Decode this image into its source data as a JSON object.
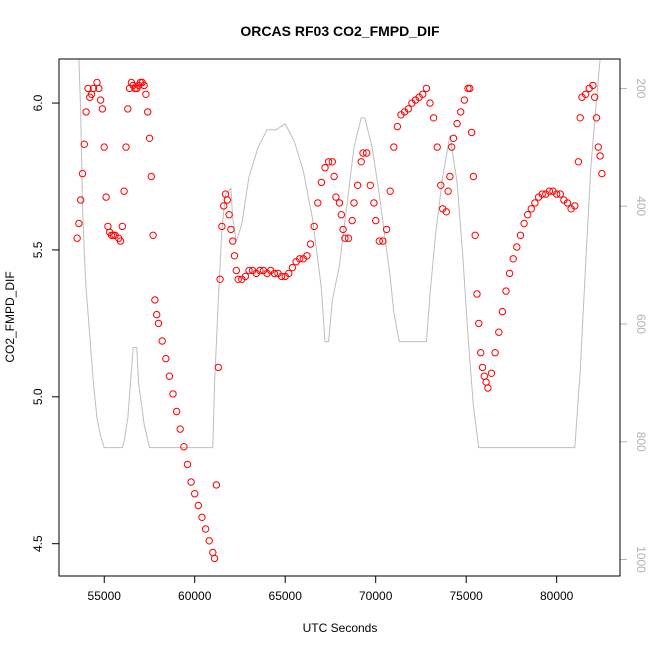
{
  "chart_data": {
    "type": "scatter",
    "title": "ORCAS RF03 CO2_FMPD_DIF",
    "xlabel": "UTC Seconds",
    "ylabel": "CO2_FMPD_DIF",
    "xlim": [
      52500,
      83500
    ],
    "ylim": [
      4.39,
      6.15
    ],
    "x_ticks": [
      55000,
      60000,
      65000,
      70000,
      75000,
      80000
    ],
    "y_ticks": [
      4.5,
      5.0,
      5.5,
      6.0
    ],
    "y2_ticks": [
      200,
      400,
      600,
      800,
      1000
    ],
    "y2lim": [
      1028,
      150
    ],
    "grid": false,
    "legend": "none",
    "colors": {
      "points": "#ff0000",
      "line": "#bebebe",
      "frame": "#000000",
      "right_axis": "#b3b3b3"
    },
    "series": [
      {
        "marker": "open-circle",
        "color": "#ff0000",
        "points": [
          [
            53500,
            5.54
          ],
          [
            53600,
            5.59
          ],
          [
            53700,
            5.67
          ],
          [
            53800,
            5.76
          ],
          [
            53900,
            5.86
          ],
          [
            54000,
            5.97
          ],
          [
            54100,
            6.05
          ],
          [
            54200,
            6.02
          ],
          [
            54300,
            6.03
          ],
          [
            54400,
            6.05
          ],
          [
            54600,
            6.07
          ],
          [
            54700,
            6.05
          ],
          [
            54800,
            6.01
          ],
          [
            54900,
            5.98
          ],
          [
            55000,
            5.85
          ],
          [
            55100,
            5.68
          ],
          [
            55200,
            5.58
          ],
          [
            55300,
            5.56
          ],
          [
            55400,
            5.55
          ],
          [
            55500,
            5.55
          ],
          [
            55600,
            5.55
          ],
          [
            55800,
            5.54
          ],
          [
            55900,
            5.53
          ],
          [
            56000,
            5.58
          ],
          [
            56100,
            5.7
          ],
          [
            56200,
            5.85
          ],
          [
            56300,
            5.98
          ],
          [
            56400,
            6.05
          ],
          [
            56500,
            6.07
          ],
          [
            56600,
            6.06
          ],
          [
            56700,
            6.05
          ],
          [
            56800,
            6.05
          ],
          [
            56900,
            6.06
          ],
          [
            57000,
            6.07
          ],
          [
            57100,
            6.07
          ],
          [
            57200,
            6.06
          ],
          [
            57300,
            6.03
          ],
          [
            57400,
            5.97
          ],
          [
            57500,
            5.88
          ],
          [
            57600,
            5.75
          ],
          [
            57700,
            5.55
          ],
          [
            57800,
            5.33
          ],
          [
            57900,
            5.28
          ],
          [
            58000,
            5.25
          ],
          [
            58200,
            5.19
          ],
          [
            58400,
            5.13
          ],
          [
            58600,
            5.07
          ],
          [
            58800,
            5.01
          ],
          [
            59000,
            4.95
          ],
          [
            59200,
            4.89
          ],
          [
            59400,
            4.83
          ],
          [
            59600,
            4.77
          ],
          [
            59800,
            4.71
          ],
          [
            60000,
            4.67
          ],
          [
            60200,
            4.63
          ],
          [
            60400,
            4.59
          ],
          [
            60600,
            4.55
          ],
          [
            60800,
            4.51
          ],
          [
            61000,
            4.47
          ],
          [
            61100,
            4.45
          ],
          [
            61200,
            4.7
          ],
          [
            61300,
            5.1
          ],
          [
            61400,
            5.4
          ],
          [
            61500,
            5.58
          ],
          [
            61600,
            5.65
          ],
          [
            61700,
            5.69
          ],
          [
            61800,
            5.67
          ],
          [
            61900,
            5.62
          ],
          [
            62000,
            5.57
          ],
          [
            62100,
            5.53
          ],
          [
            62200,
            5.48
          ],
          [
            62300,
            5.43
          ],
          [
            62400,
            5.4
          ],
          [
            62600,
            5.4
          ],
          [
            62800,
            5.41
          ],
          [
            63000,
            5.43
          ],
          [
            63200,
            5.43
          ],
          [
            63400,
            5.42
          ],
          [
            63600,
            5.43
          ],
          [
            63800,
            5.43
          ],
          [
            64000,
            5.42
          ],
          [
            64200,
            5.43
          ],
          [
            64400,
            5.42
          ],
          [
            64600,
            5.42
          ],
          [
            64800,
            5.41
          ],
          [
            65000,
            5.41
          ],
          [
            65200,
            5.42
          ],
          [
            65400,
            5.44
          ],
          [
            65600,
            5.46
          ],
          [
            65800,
            5.47
          ],
          [
            66000,
            5.47
          ],
          [
            66200,
            5.48
          ],
          [
            66400,
            5.52
          ],
          [
            66600,
            5.58
          ],
          [
            66800,
            5.66
          ],
          [
            67000,
            5.73
          ],
          [
            67200,
            5.78
          ],
          [
            67400,
            5.8
          ],
          [
            67600,
            5.8
          ],
          [
            67700,
            5.75
          ],
          [
            67800,
            5.68
          ],
          [
            68000,
            5.66
          ],
          [
            68100,
            5.62
          ],
          [
            68200,
            5.57
          ],
          [
            68300,
            5.54
          ],
          [
            68500,
            5.54
          ],
          [
            68700,
            5.6
          ],
          [
            68800,
            5.66
          ],
          [
            69000,
            5.72
          ],
          [
            69200,
            5.8
          ],
          [
            69300,
            5.83
          ],
          [
            69500,
            5.83
          ],
          [
            69700,
            5.72
          ],
          [
            69900,
            5.66
          ],
          [
            70000,
            5.6
          ],
          [
            70200,
            5.53
          ],
          [
            70400,
            5.53
          ],
          [
            70600,
            5.57
          ],
          [
            70800,
            5.7
          ],
          [
            71000,
            5.85
          ],
          [
            71200,
            5.92
          ],
          [
            71400,
            5.96
          ],
          [
            71600,
            5.97
          ],
          [
            71800,
            5.98
          ],
          [
            72000,
            6.0
          ],
          [
            72200,
            6.01
          ],
          [
            72400,
            6.02
          ],
          [
            72600,
            6.03
          ],
          [
            72800,
            6.05
          ],
          [
            73000,
            6.0
          ],
          [
            73200,
            5.95
          ],
          [
            73400,
            5.85
          ],
          [
            73600,
            5.72
          ],
          [
            73700,
            5.64
          ],
          [
            73900,
            5.63
          ],
          [
            74000,
            5.7
          ],
          [
            74100,
            5.75
          ],
          [
            74200,
            5.85
          ],
          [
            74300,
            5.88
          ],
          [
            74500,
            5.93
          ],
          [
            74700,
            5.97
          ],
          [
            74900,
            6.01
          ],
          [
            75100,
            6.05
          ],
          [
            75200,
            6.05
          ],
          [
            75300,
            5.9
          ],
          [
            75400,
            5.75
          ],
          [
            75500,
            5.55
          ],
          [
            75600,
            5.35
          ],
          [
            75700,
            5.25
          ],
          [
            75800,
            5.15
          ],
          [
            75900,
            5.1
          ],
          [
            76000,
            5.07
          ],
          [
            76100,
            5.05
          ],
          [
            76200,
            5.03
          ],
          [
            76400,
            5.08
          ],
          [
            76600,
            5.15
          ],
          [
            76800,
            5.22
          ],
          [
            77000,
            5.29
          ],
          [
            77200,
            5.36
          ],
          [
            77400,
            5.42
          ],
          [
            77600,
            5.47
          ],
          [
            77800,
            5.51
          ],
          [
            78000,
            5.55
          ],
          [
            78200,
            5.59
          ],
          [
            78400,
            5.62
          ],
          [
            78600,
            5.64
          ],
          [
            78800,
            5.66
          ],
          [
            79000,
            5.68
          ],
          [
            79200,
            5.69
          ],
          [
            79400,
            5.69
          ],
          [
            79600,
            5.7
          ],
          [
            79800,
            5.7
          ],
          [
            80000,
            5.69
          ],
          [
            80200,
            5.69
          ],
          [
            80400,
            5.67
          ],
          [
            80600,
            5.66
          ],
          [
            80800,
            5.64
          ],
          [
            81000,
            5.65
          ],
          [
            81200,
            5.8
          ],
          [
            81300,
            5.95
          ],
          [
            81400,
            6.02
          ],
          [
            81600,
            6.03
          ],
          [
            81800,
            6.05
          ],
          [
            82000,
            6.06
          ],
          [
            82100,
            6.02
          ],
          [
            82200,
            5.95
          ],
          [
            82300,
            5.85
          ],
          [
            82400,
            5.82
          ],
          [
            82500,
            5.76
          ]
        ]
      },
      {
        "marker": "line",
        "color": "#bebebe",
        "axis": "right",
        "points": [
          [
            53600,
            150
          ],
          [
            53700,
            240
          ],
          [
            53800,
            400
          ],
          [
            53900,
            480
          ],
          [
            54000,
            540
          ],
          [
            54200,
            620
          ],
          [
            54400,
            700
          ],
          [
            54600,
            760
          ],
          [
            54800,
            790
          ],
          [
            55000,
            810
          ],
          [
            56000,
            810
          ],
          [
            56100,
            800
          ],
          [
            56300,
            760
          ],
          [
            56500,
            680
          ],
          [
            56600,
            640
          ],
          [
            56800,
            640
          ],
          [
            56900,
            700
          ],
          [
            57200,
            770
          ],
          [
            57500,
            810
          ],
          [
            58000,
            810
          ],
          [
            60000,
            810
          ],
          [
            61000,
            810
          ],
          [
            61100,
            700
          ],
          [
            61300,
            560
          ],
          [
            61500,
            440
          ],
          [
            61700,
            380
          ],
          [
            62000,
            370
          ],
          [
            62100,
            420
          ],
          [
            62300,
            460
          ],
          [
            62600,
            430
          ],
          [
            63000,
            350
          ],
          [
            63500,
            300
          ],
          [
            64000,
            270
          ],
          [
            64500,
            270
          ],
          [
            65000,
            260
          ],
          [
            65500,
            290
          ],
          [
            66000,
            340
          ],
          [
            66500,
            420
          ],
          [
            67000,
            540
          ],
          [
            67200,
            630
          ],
          [
            67400,
            630
          ],
          [
            67600,
            560
          ],
          [
            68000,
            500
          ],
          [
            68400,
            400
          ],
          [
            68800,
            300
          ],
          [
            69200,
            250
          ],
          [
            69400,
            250
          ],
          [
            69800,
            300
          ],
          [
            70200,
            380
          ],
          [
            70500,
            450
          ],
          [
            70800,
            520
          ],
          [
            71000,
            580
          ],
          [
            71300,
            630
          ],
          [
            72800,
            630
          ],
          [
            73000,
            550
          ],
          [
            73300,
            450
          ],
          [
            73700,
            350
          ],
          [
            74100,
            280
          ],
          [
            74500,
            360
          ],
          [
            74800,
            480
          ],
          [
            75100,
            620
          ],
          [
            75400,
            740
          ],
          [
            75700,
            810
          ],
          [
            76000,
            810
          ],
          [
            80000,
            810
          ],
          [
            81000,
            810
          ],
          [
            81300,
            680
          ],
          [
            81600,
            500
          ],
          [
            81900,
            330
          ],
          [
            82200,
            220
          ],
          [
            82400,
            150
          ]
        ]
      }
    ]
  }
}
